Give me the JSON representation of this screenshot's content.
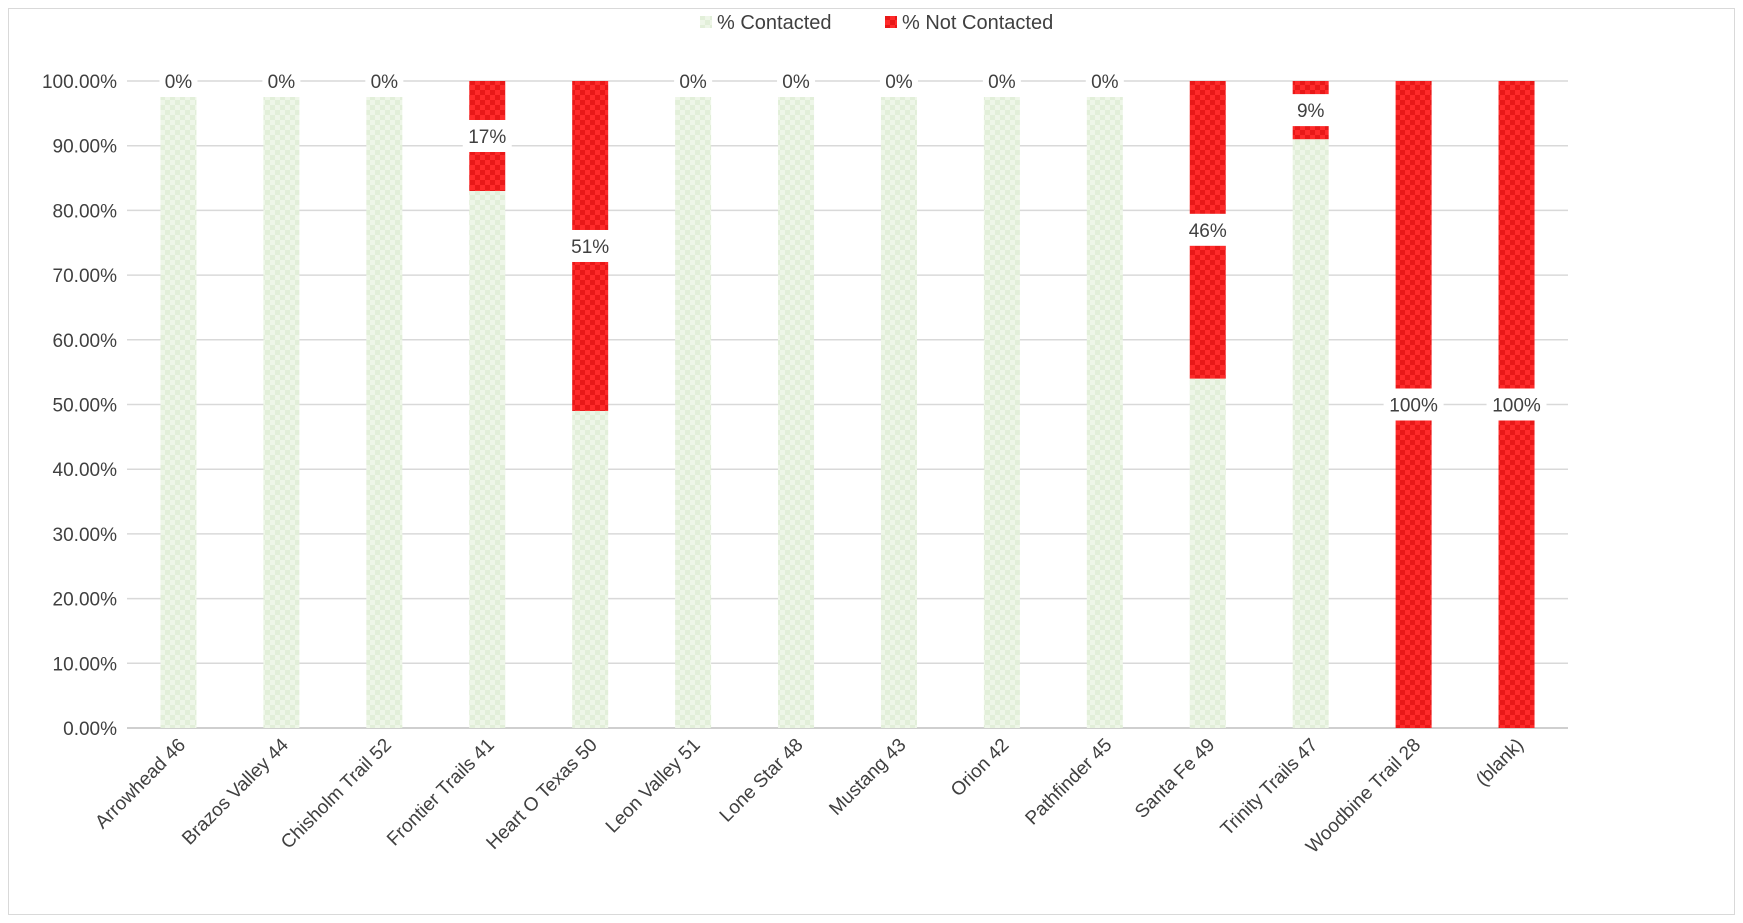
{
  "chart_data": {
    "type": "bar",
    "stacked": "percent",
    "categories": [
      "Arrowhead 46",
      "Brazos Valley 44",
      "Chisholm Trail 52",
      "Frontier Trails 41",
      "Heart O Texas 50",
      "Leon Valley 51",
      "Lone Star 48",
      "Mustang 43",
      "Orion 42",
      "Pathfinder 45",
      "Santa Fe 49",
      "Trinity Trails 47",
      "Woodbine Trail 28",
      "(blank)"
    ],
    "series": [
      {
        "name": "% Contacted",
        "color": "#e2efd9",
        "values": [
          1.0,
          1.0,
          1.0,
          0.83,
          0.49,
          1.0,
          1.0,
          1.0,
          1.0,
          1.0,
          0.54,
          0.91,
          0.0,
          0.0
        ]
      },
      {
        "name": "% Not Contacted",
        "color": "#ff2a2a",
        "values": [
          0.0,
          0.0,
          0.0,
          0.17,
          0.51,
          0.0,
          0.0,
          0.0,
          0.0,
          0.0,
          0.46,
          0.09,
          1.0,
          1.0
        ]
      }
    ],
    "data_labels": [
      "0%",
      "0%",
      "0%",
      "17%",
      "51%",
      "0%",
      "0%",
      "0%",
      "0%",
      "0%",
      "46%",
      "9%",
      "100%",
      "100%"
    ],
    "ylim": [
      0,
      1
    ],
    "yticks": [
      "0.00%",
      "10.00%",
      "20.00%",
      "30.00%",
      "40.00%",
      "50.00%",
      "60.00%",
      "70.00%",
      "80.00%",
      "90.00%",
      "100.00%"
    ],
    "grid": true,
    "legend": "top-center"
  }
}
